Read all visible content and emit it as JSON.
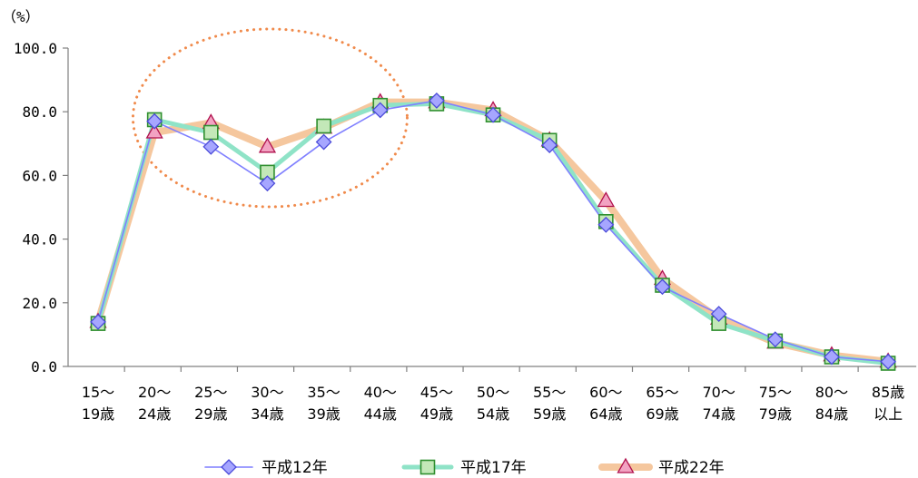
{
  "chart_data": {
    "type": "line",
    "ylabel": "（%）",
    "ylim": [
      0,
      100
    ],
    "y_ticks": [
      "0.0",
      "20.0",
      "40.0",
      "60.0",
      "80.0",
      "100.0"
    ],
    "categories": [
      [
        "15～",
        "19歳"
      ],
      [
        "20～",
        "24歳"
      ],
      [
        "25～",
        "29歳"
      ],
      [
        "30～",
        "34歳"
      ],
      [
        "35～",
        "39歳"
      ],
      [
        "40～",
        "44歳"
      ],
      [
        "45～",
        "49歳"
      ],
      [
        "50～",
        "54歳"
      ],
      [
        "55～",
        "59歳"
      ],
      [
        "60～",
        "64歳"
      ],
      [
        "65～",
        "69歳"
      ],
      [
        "70～",
        "74歳"
      ],
      [
        "75～",
        "79歳"
      ],
      [
        "80～",
        "84歳"
      ],
      [
        "85歳",
        "以上"
      ]
    ],
    "series": [
      {
        "name": "平成12年",
        "marker": "diamond",
        "line_color": "#7f7fff",
        "fill": "#a6a6ff",
        "stroke": "#4a4ad9",
        "values": [
          14.0,
          77.0,
          69.0,
          57.5,
          70.5,
          80.5,
          83.5,
          79.0,
          69.5,
          44.5,
          25.0,
          16.5,
          8.5,
          3.0,
          1.5
        ]
      },
      {
        "name": "平成17年",
        "marker": "square",
        "line_color": "#8fe3c7",
        "fill": "#c3e8b8",
        "stroke": "#2f8f2f",
        "values": [
          13.5,
          77.5,
          73.5,
          61.0,
          75.5,
          82.0,
          82.5,
          79.0,
          71.0,
          45.5,
          25.5,
          13.5,
          8.0,
          3.0,
          1.0
        ]
      },
      {
        "name": "平成22年",
        "marker": "triangle",
        "line_color": "#f5c79e",
        "fill": "#f2a3c2",
        "stroke": "#b0104d",
        "values": [
          14.0,
          73.5,
          76.5,
          69.0,
          75.0,
          83.0,
          83.0,
          80.5,
          71.0,
          52.0,
          27.5,
          15.0,
          7.5,
          3.5,
          1.5
        ]
      }
    ],
    "highlight": {
      "shape": "dotted-ellipse",
      "color": "#f08a4b",
      "from_category": "20～24歳",
      "to_category": "40～44歳"
    },
    "legend_position": "bottom",
    "grid": false
  }
}
